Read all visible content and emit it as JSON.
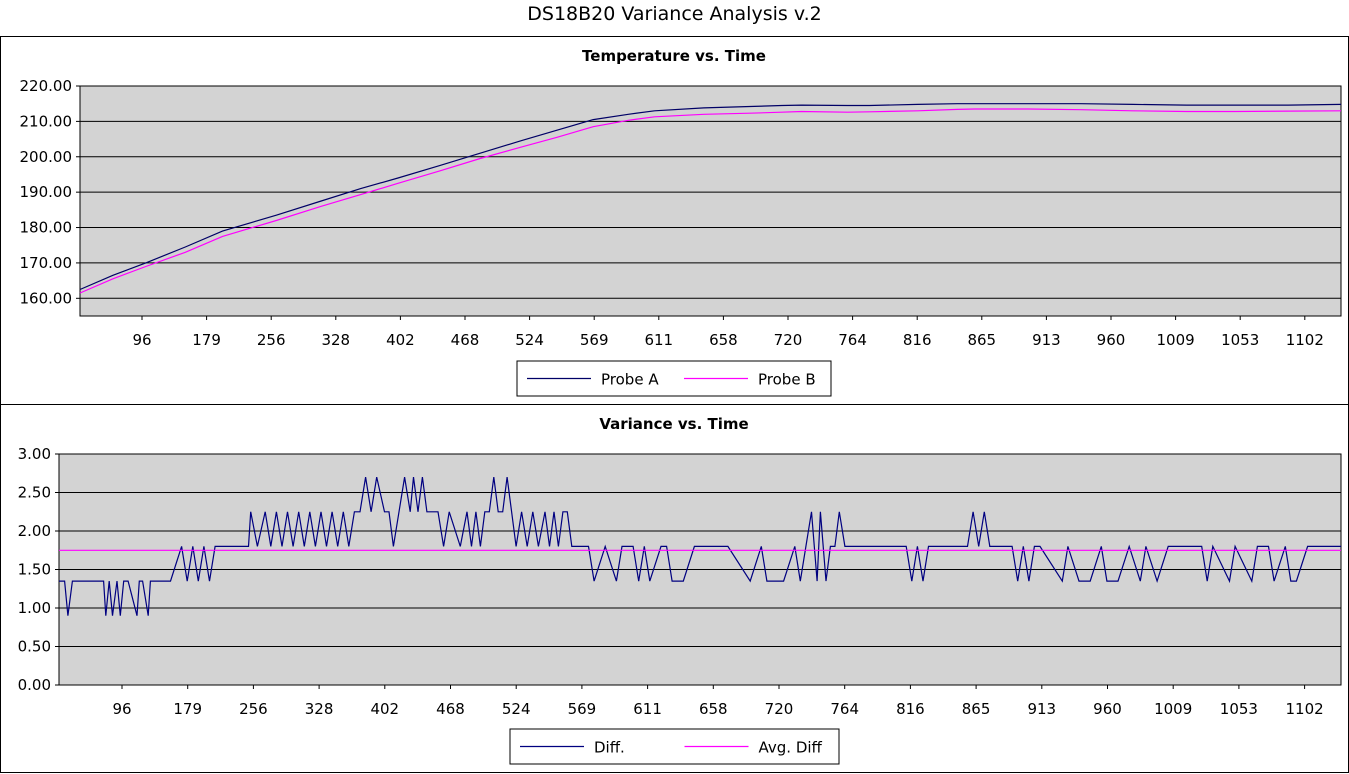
{
  "title": "DS18B20 Variance Analysis v.2",
  "colors": {
    "probe_a": "#000066",
    "probe_b": "#ff00ff",
    "diff": "#000080",
    "avg_diff": "#ff00ff",
    "plot_bg": "#d3d3d3"
  },
  "chart_data": [
    {
      "type": "line",
      "title": "Temperature vs. Time",
      "x_tick_labels": [
        "96",
        "179",
        "256",
        "328",
        "402",
        "468",
        "524",
        "569",
        "611",
        "658",
        "720",
        "764",
        "816",
        "865",
        "913",
        "960",
        "1009",
        "1053",
        "1102"
      ],
      "y_tick_labels": [
        "160.00",
        "170.00",
        "180.00",
        "190.00",
        "200.00",
        "210.00",
        "220.00"
      ],
      "ylim": [
        155,
        220
      ],
      "x_range": [
        0,
        1150
      ],
      "grid": true,
      "legend_placement": "bottom",
      "series": [
        {
          "name": "Probe A",
          "color": "#000066",
          "x": [
            0,
            30,
            60,
            96,
            130,
            179,
            220,
            256,
            290,
            328,
            365,
            402,
            435,
            468,
            500,
            524,
            569,
            611,
            640,
            658,
            700,
            720,
            764,
            800,
            816,
            865,
            913,
            960,
            1009,
            1053,
            1102,
            1150
          ],
          "y": [
            162.5,
            166.5,
            170,
            174.5,
            179,
            183.5,
            187.5,
            191,
            194,
            197.5,
            201,
            204.5,
            207.5,
            210.5,
            212,
            213,
            213.8,
            214.2,
            214.5,
            214.6,
            214.5,
            214.5,
            214.8,
            215,
            215,
            215,
            215,
            214.8,
            214.6,
            214.6,
            214.6,
            214.8
          ]
        },
        {
          "name": "Probe B",
          "color": "#ff00ff",
          "x": [
            0,
            30,
            60,
            96,
            130,
            179,
            220,
            256,
            290,
            328,
            365,
            402,
            435,
            468,
            500,
            524,
            569,
            611,
            640,
            658,
            700,
            720,
            764,
            800,
            816,
            865,
            913,
            960,
            1009,
            1053,
            1102,
            1150
          ],
          "y": [
            161.5,
            165.5,
            169,
            173,
            177.5,
            182,
            186,
            189.3,
            192.5,
            196,
            199.5,
            202.7,
            205.5,
            208.5,
            210.3,
            211.3,
            212,
            212.3,
            212.6,
            212.8,
            212.6,
            212.7,
            213,
            213.4,
            213.5,
            213.5,
            213.3,
            213,
            212.8,
            212.8,
            212.9,
            213
          ]
        }
      ]
    },
    {
      "type": "line",
      "title": "Variance vs. Time",
      "x_tick_labels": [
        "96",
        "179",
        "256",
        "328",
        "402",
        "468",
        "524",
        "569",
        "611",
        "658",
        "720",
        "764",
        "816",
        "865",
        "913",
        "960",
        "1009",
        "1053",
        "1102"
      ],
      "y_tick_labels": [
        "0.00",
        "0.50",
        "1.00",
        "1.50",
        "2.00",
        "2.50",
        "3.00"
      ],
      "ylim": [
        0,
        3
      ],
      "x_range": [
        0,
        1150
      ],
      "grid": true,
      "legend_placement": "bottom",
      "series": [
        {
          "name": "Diff.",
          "color": "#000080",
          "x": [
            0,
            5,
            8,
            12,
            40,
            42,
            45,
            48,
            52,
            55,
            58,
            62,
            70,
            72,
            75,
            80,
            82,
            90,
            95,
            100,
            110,
            115,
            120,
            125,
            130,
            135,
            140,
            145,
            150,
            160,
            170,
            172,
            178,
            185,
            190,
            195,
            200,
            205,
            210,
            215,
            220,
            225,
            230,
            235,
            240,
            245,
            250,
            255,
            260,
            265,
            270,
            275,
            280,
            285,
            292,
            296,
            300,
            305,
            310,
            315,
            318,
            322,
            326,
            330,
            335,
            340,
            345,
            350,
            360,
            366,
            370,
            374,
            378,
            382,
            386,
            390,
            394,
            398,
            402,
            410,
            415,
            420,
            425,
            430,
            436,
            440,
            444,
            448,
            452,
            456,
            460,
            465,
            470,
            475,
            480,
            490,
            500,
            505,
            510,
            515,
            520,
            525,
            530,
            540,
            545,
            550,
            560,
            570,
            580,
            590,
            600,
            620,
            630,
            635,
            640,
            645,
            650,
            660,
            665,
            670,
            675,
            680,
            683,
            688,
            692,
            696,
            700,
            705,
            710,
            720,
            740,
            760,
            765,
            770,
            775,
            780,
            800,
            815,
            820,
            825,
            830,
            835,
            840,
            855,
            860,
            865,
            870,
            875,
            880,
            900,
            905,
            915,
            925,
            935,
            940,
            950,
            960,
            970,
            975,
            985,
            995,
            1000,
            1020,
            1025,
            1030,
            1035,
            1050,
            1055,
            1070,
            1075,
            1085,
            1090,
            1100,
            1105,
            1110,
            1120,
            1130,
            1140,
            1150
          ],
          "y": [
            1.35,
            1.35,
            0.9,
            1.35,
            1.35,
            0.9,
            1.35,
            0.9,
            1.35,
            0.9,
            1.35,
            1.35,
            0.9,
            1.35,
            1.35,
            0.9,
            1.35,
            1.35,
            1.35,
            1.35,
            1.8,
            1.35,
            1.8,
            1.35,
            1.8,
            1.35,
            1.8,
            1.8,
            1.8,
            1.8,
            1.8,
            2.25,
            1.8,
            2.25,
            1.8,
            2.25,
            1.8,
            2.25,
            1.8,
            2.25,
            1.8,
            2.25,
            1.8,
            2.25,
            1.8,
            2.25,
            1.8,
            2.25,
            1.8,
            2.25,
            2.25,
            2.7,
            2.25,
            2.7,
            2.25,
            2.25,
            1.8,
            2.25,
            2.7,
            2.25,
            2.7,
            2.25,
            2.7,
            2.25,
            2.25,
            2.25,
            1.8,
            2.25,
            1.8,
            2.25,
            1.8,
            2.25,
            1.8,
            2.25,
            2.25,
            2.7,
            2.25,
            2.25,
            2.7,
            1.8,
            2.25,
            1.8,
            2.25,
            1.8,
            2.25,
            1.8,
            2.25,
            1.8,
            2.25,
            2.25,
            1.8,
            1.8,
            1.8,
            1.8,
            1.35,
            1.8,
            1.35,
            1.8,
            1.8,
            1.8,
            1.35,
            1.8,
            1.35,
            1.8,
            1.8,
            1.35,
            1.35,
            1.8,
            1.8,
            1.8,
            1.8,
            1.35,
            1.8,
            1.35,
            1.35,
            1.35,
            1.35,
            1.8,
            1.35,
            1.8,
            2.25,
            1.35,
            2.25,
            1.35,
            1.8,
            1.8,
            2.25,
            1.8,
            1.8,
            1.8,
            1.8,
            1.8,
            1.35,
            1.8,
            1.35,
            1.8,
            1.8,
            1.8,
            2.25,
            1.8,
            2.25,
            1.8,
            1.8,
            1.8,
            1.35,
            1.8,
            1.35,
            1.8,
            1.8,
            1.35,
            1.8,
            1.35,
            1.35,
            1.8,
            1.35,
            1.35,
            1.8,
            1.35,
            1.8,
            1.35,
            1.8,
            1.8,
            1.8,
            1.8,
            1.35,
            1.8,
            1.35,
            1.8,
            1.35,
            1.8,
            1.8,
            1.35,
            1.8,
            1.35,
            1.35,
            1.8,
            1.8,
            1.8,
            1.8
          ]
        },
        {
          "name": "Avg. Diff",
          "color": "#ff00ff",
          "x": [
            0,
            1150
          ],
          "y": [
            1.75,
            1.75
          ]
        }
      ]
    }
  ]
}
